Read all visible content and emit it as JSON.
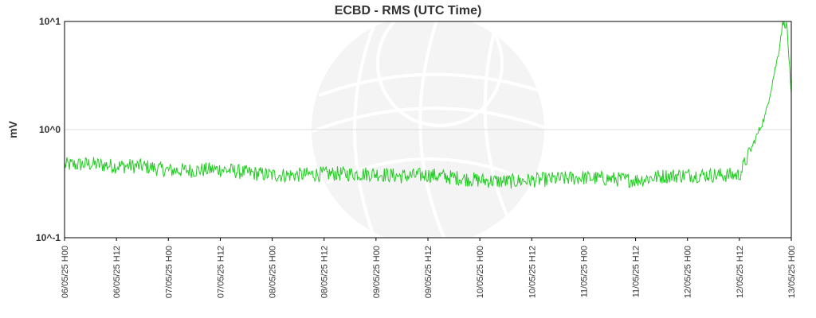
{
  "chart_data": {
    "type": "line",
    "title": "ECBD - RMS (UTC Time)",
    "xlabel": "",
    "ylabel": "mV",
    "y_scale": "log",
    "ylim": [
      0.1,
      10
    ],
    "y_ticks": [
      {
        "value": 0.1,
        "label": "10^-1"
      },
      {
        "value": 1,
        "label": "10^0"
      },
      {
        "value": 10,
        "label": "10^1"
      }
    ],
    "x_ticks": [
      "06/05/25 H00",
      "06/05/25 H12",
      "07/05/25 H00",
      "07/05/25 H12",
      "08/05/25 H00",
      "08/05/25 H12",
      "09/05/25 H00",
      "09/05/25 H12",
      "10/05/25 H00",
      "10/05/25 H12",
      "11/05/25 H00",
      "11/05/25 H12",
      "12/05/25 H00",
      "12/05/25 H12",
      "13/05/25 H00"
    ],
    "xlim": [
      "06/05/25 H00",
      "13/05/25 H00"
    ],
    "grid": {
      "horizontal": true,
      "vertical": false
    },
    "series": [
      {
        "color": "#22cc22",
        "x": [
          "06/05/25 H00",
          "06/05/25 H06",
          "06/05/25 H12",
          "06/05/25 H18",
          "07/05/25 H00",
          "07/05/25 H06",
          "07/05/25 H12",
          "07/05/25 H18",
          "08/05/25 H00",
          "08/05/25 H06",
          "08/05/25 H12",
          "08/05/25 H18",
          "09/05/25 H00",
          "09/05/25 H06",
          "09/05/25 H12",
          "09/05/25 H18",
          "10/05/25 H00",
          "10/05/25 H06",
          "10/05/25 H12",
          "10/05/25 H18",
          "11/05/25 H00",
          "11/05/25 H06",
          "11/05/25 H12",
          "11/05/25 H18",
          "12/05/25 H00",
          "12/05/25 H06",
          "12/05/25 H12",
          "12/05/25 H15",
          "12/05/25 H18",
          "12/05/25 H21",
          "12/05/25 H22",
          "12/05/25 H23",
          "13/05/25 H00"
        ],
        "values": [
          0.47,
          0.48,
          0.46,
          0.46,
          0.42,
          0.42,
          0.43,
          0.4,
          0.38,
          0.38,
          0.39,
          0.39,
          0.39,
          0.37,
          0.38,
          0.36,
          0.34,
          0.33,
          0.34,
          0.35,
          0.36,
          0.35,
          0.34,
          0.37,
          0.38,
          0.38,
          0.38,
          0.7,
          1.35,
          5.0,
          9.7,
          9.2,
          2.0
        ]
      }
    ]
  }
}
